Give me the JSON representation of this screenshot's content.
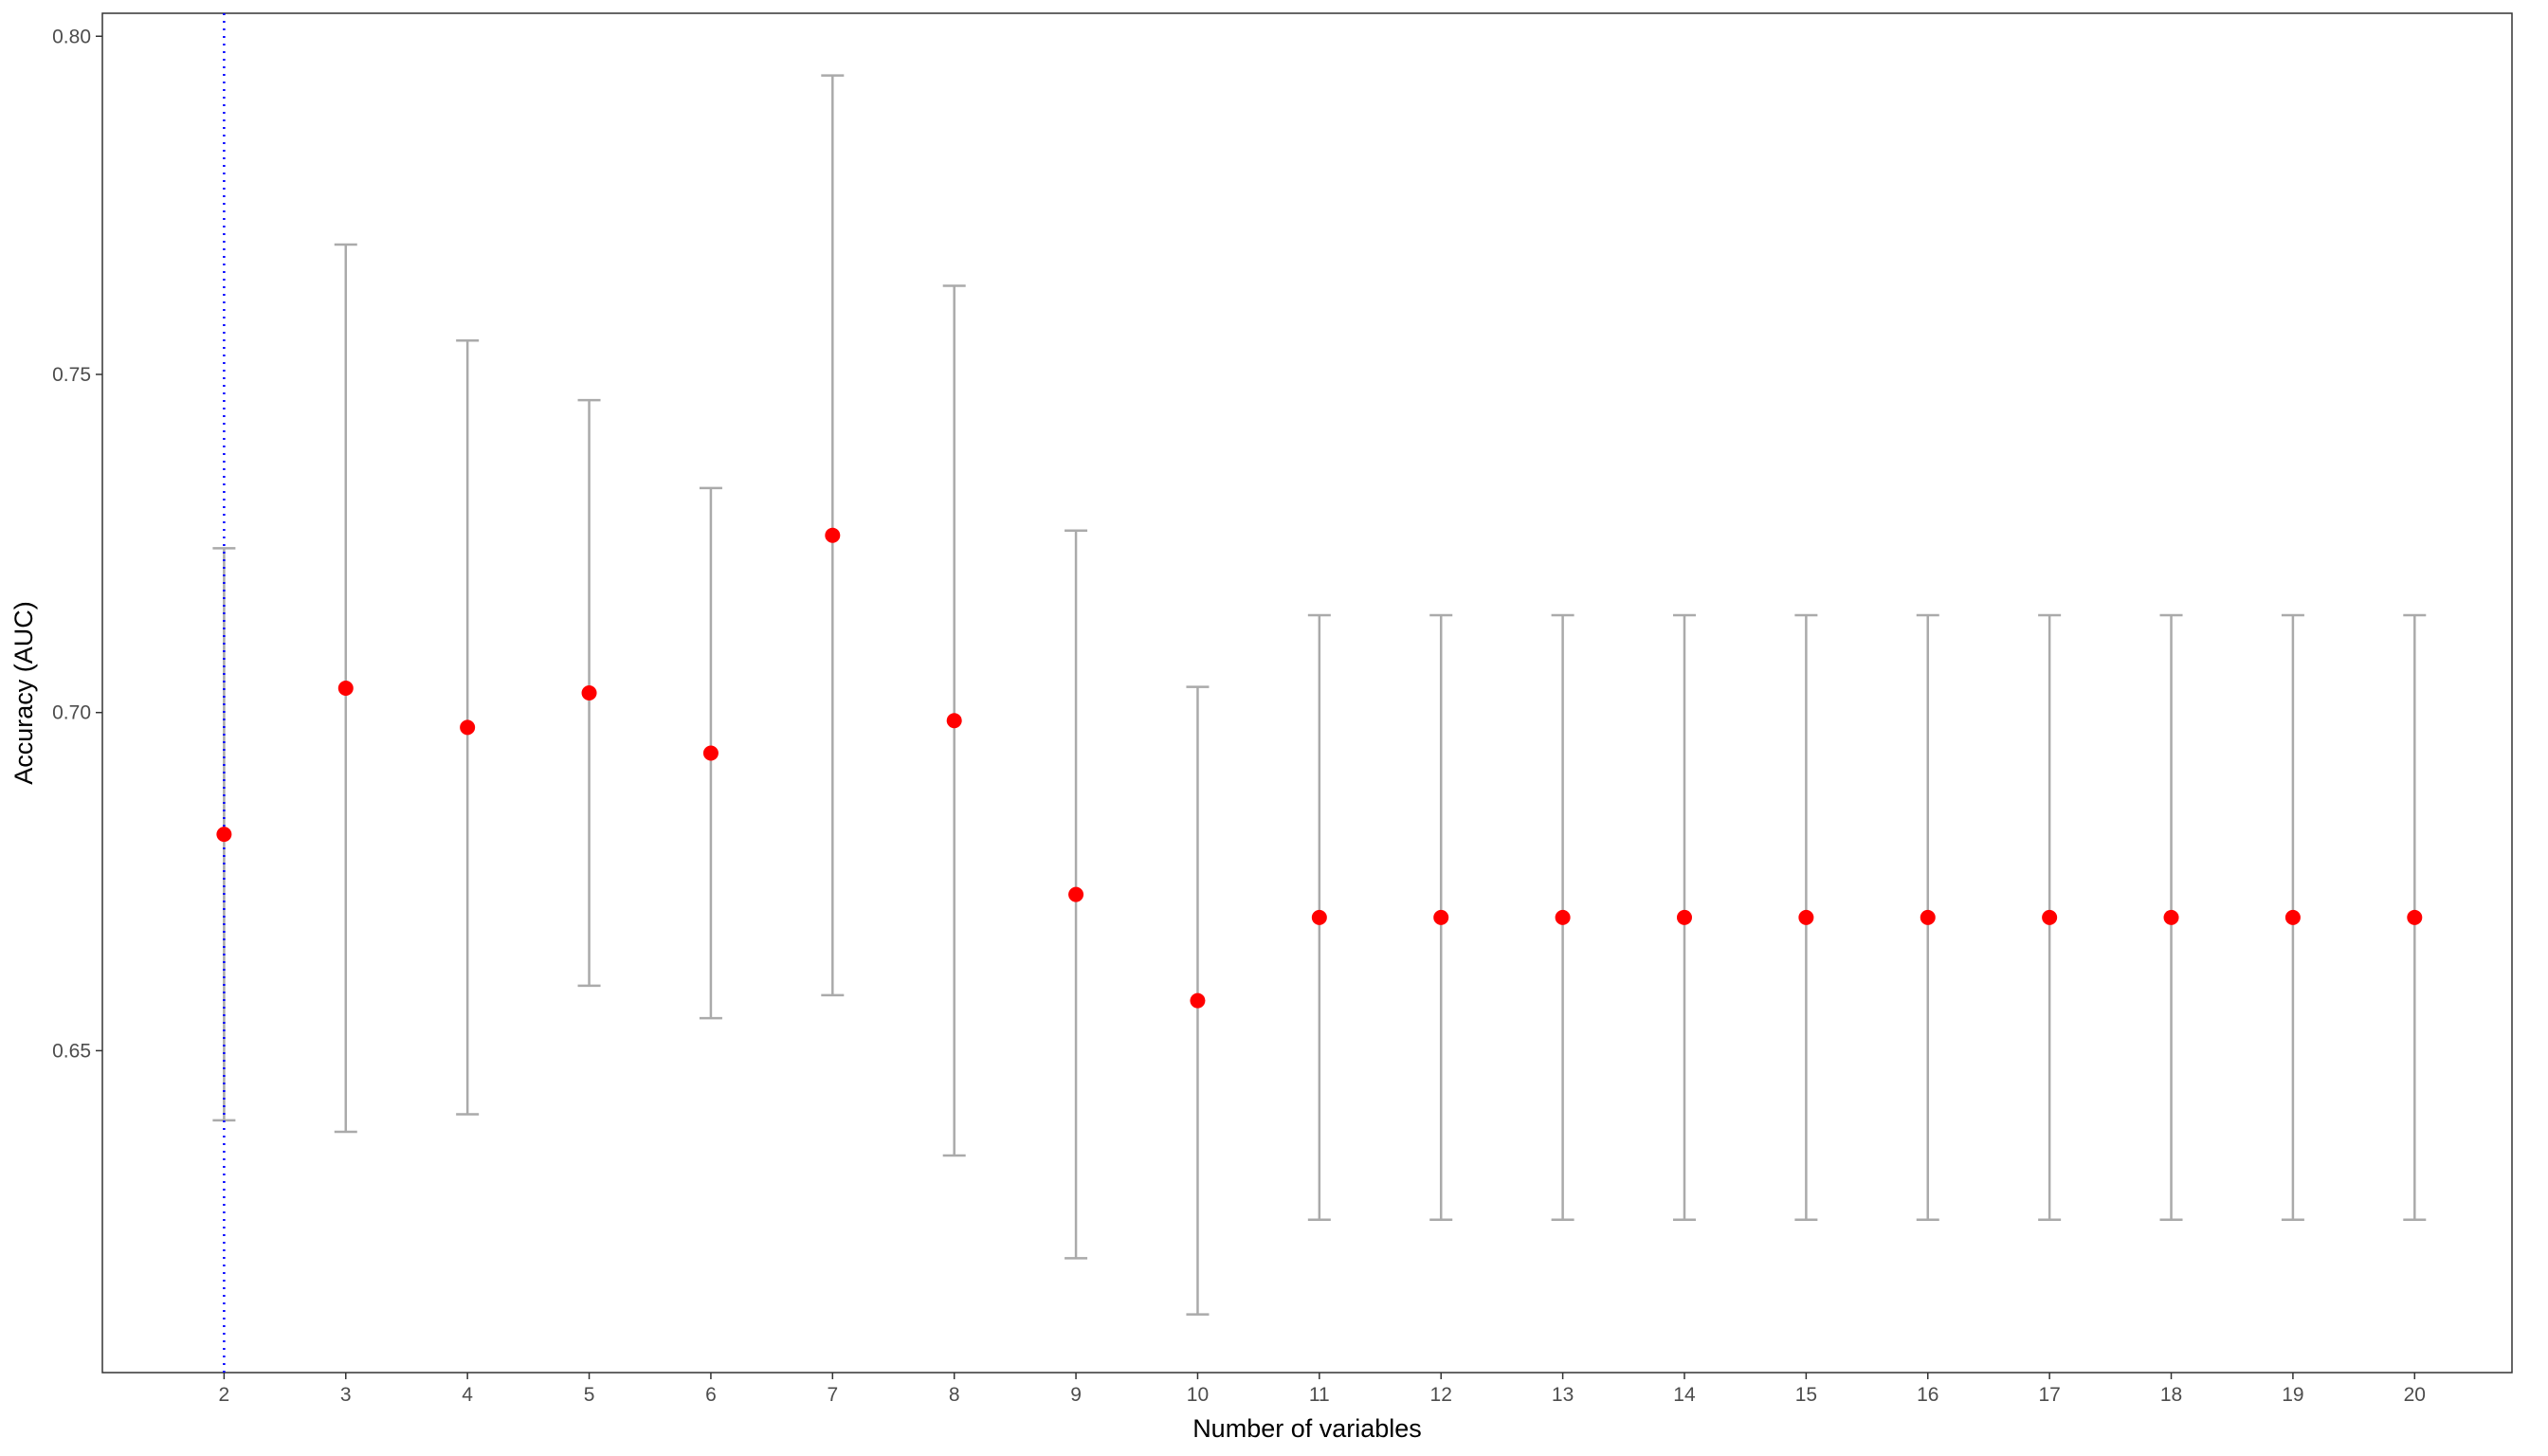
{
  "chart_data": {
    "type": "errorbar-scatter",
    "x_label": "Number of variables",
    "y_label": "Accuracy (AUC)",
    "x": [
      2,
      3,
      4,
      5,
      6,
      7,
      8,
      9,
      10,
      11,
      12,
      13,
      14,
      15,
      16,
      17,
      18,
      19,
      20
    ],
    "values": [
      0.682,
      0.7036,
      0.6978,
      0.7029,
      0.694,
      0.7262,
      0.6988,
      0.6731,
      0.6574,
      0.6697,
      0.6697,
      0.6697,
      0.6697,
      0.6697,
      0.6697,
      0.6697,
      0.6697,
      0.6697,
      0.6697
    ],
    "errors": [
      0.0423,
      0.0656,
      0.0572,
      0.0433,
      0.0392,
      0.068,
      0.0643,
      0.0538,
      0.0464,
      0.0447,
      0.0447,
      0.0447,
      0.0447,
      0.0447,
      0.0447,
      0.0447,
      0.0447,
      0.0447,
      0.0447
    ],
    "color": "#ff0000",
    "error_color": "#aaaaaa",
    "vline": 2,
    "vline_color": "#0000ff",
    "xlim": [
      1,
      20.8
    ],
    "xticks": [
      2,
      3,
      4,
      5,
      6,
      7,
      8,
      9,
      10,
      11,
      12,
      13,
      14,
      15,
      16,
      17,
      18,
      19,
      20
    ],
    "ylim": [
      0.6024,
      0.8034
    ],
    "yticks": [
      {
        "value": 0.65,
        "label": "0.65"
      },
      {
        "value": 0.7,
        "label": "0.70"
      },
      {
        "value": 0.75,
        "label": "0.75"
      },
      {
        "value": 0.8,
        "label": "0.80"
      }
    ],
    "grid": false
  }
}
